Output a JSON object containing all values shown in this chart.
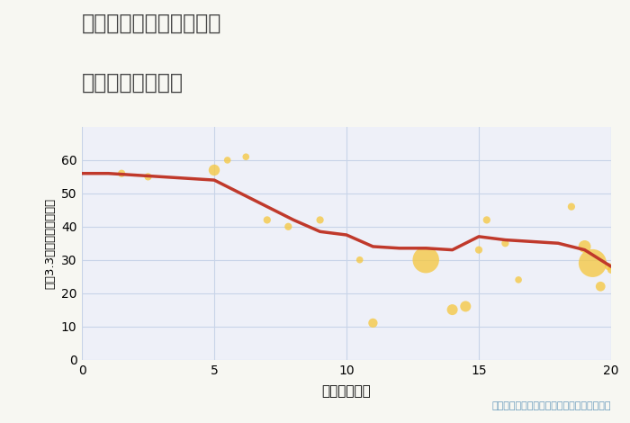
{
  "title_line1": "神奈川県伊勢原市鈴川の",
  "title_line2": "駅距離別土地価格",
  "xlabel": "駅距離（分）",
  "ylabel": "坪（3.3㎡）単価（万円）",
  "annotation": "円の大きさは、取引のあった物件面積を示す",
  "bg_color": "#f7f7f2",
  "plot_bg_color": "#eef0f8",
  "grid_color": "#c8d4e8",
  "scatter_color": "#f5c842",
  "scatter_alpha": 0.78,
  "line_color": "#c0392b",
  "line_width": 2.5,
  "xlim": [
    0,
    20
  ],
  "ylim": [
    0,
    70
  ],
  "xticks": [
    0,
    5,
    10,
    15,
    20
  ],
  "yticks": [
    0,
    10,
    20,
    30,
    40,
    50,
    60
  ],
  "scatter_x": [
    1.5,
    2.5,
    5.0,
    5.5,
    6.2,
    7.0,
    7.8,
    9.0,
    10.5,
    11.0,
    13.0,
    14.0,
    14.5,
    15.0,
    15.3,
    16.0,
    16.5,
    18.5,
    19.0,
    19.3,
    19.6,
    19.9,
    20.0
  ],
  "scatter_y": [
    56,
    55,
    57,
    60,
    61,
    42,
    40,
    42,
    30,
    11,
    30,
    15,
    16,
    33,
    42,
    35,
    24,
    46,
    34,
    29,
    22,
    28,
    27
  ],
  "scatter_size": [
    35,
    35,
    80,
    30,
    30,
    35,
    35,
    35,
    30,
    55,
    450,
    75,
    75,
    35,
    35,
    35,
    30,
    35,
    100,
    500,
    60,
    35,
    35
  ],
  "line_x": [
    0,
    1,
    2,
    3,
    4,
    5,
    6,
    7,
    8,
    9,
    10,
    11,
    12,
    13,
    14,
    15,
    16,
    17,
    18,
    19,
    20
  ],
  "line_y": [
    56,
    56,
    55.5,
    55,
    54.5,
    54,
    50,
    46,
    42,
    38.5,
    37.5,
    34,
    33.5,
    33.5,
    33,
    37,
    36,
    35.5,
    35,
    33,
    28
  ]
}
